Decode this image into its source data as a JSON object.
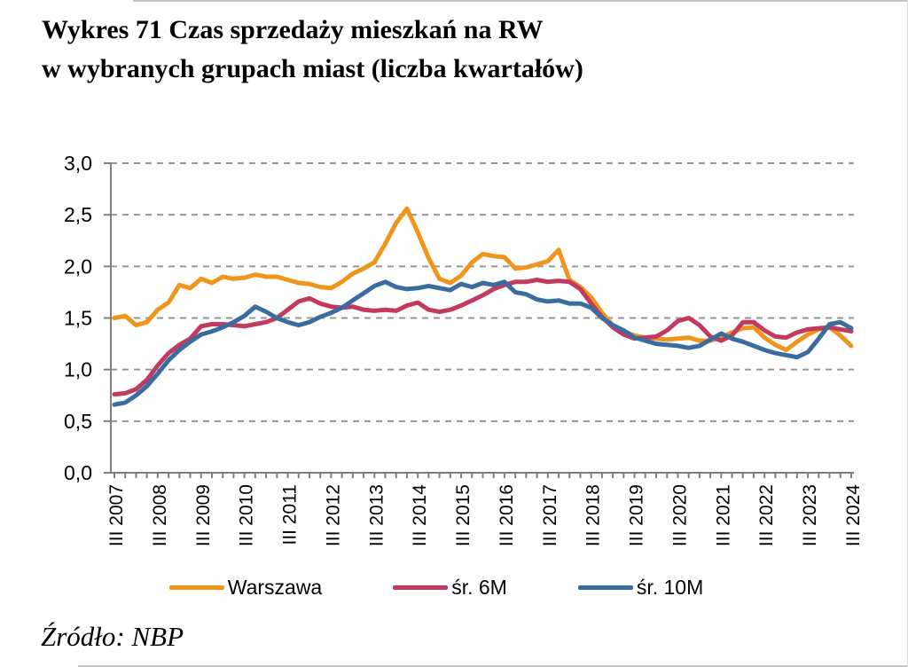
{
  "title": {
    "line1": "Wykres 71 Czas sprzedaży mieszkań na RW",
    "line2": "w wybranych grupach miast (liczba kwartałów)"
  },
  "source": "Źródło: NBP",
  "colors": {
    "warszawa": "#EF951C",
    "sr6m": "#C23A60",
    "sr10m": "#3A6CA0",
    "axis": "#7f7f7f",
    "grid": "#969696",
    "text": "#000000"
  },
  "chart_data": {
    "type": "line",
    "title": "Wykres 71 Czas sprzedaży mieszkań na RW w wybranych grupach miast (liczba kwartałów)",
    "xlabel": "",
    "ylabel": "",
    "ylim": [
      0.0,
      3.0
    ],
    "y_tick_step": 0.5,
    "y_tick_labels": [
      "0,0",
      "0,5",
      "1,0",
      "1,5",
      "2,0",
      "2,5",
      "3,0"
    ],
    "x_unit": "quarterly, III 2007 to III 2024",
    "x_tick_labels": [
      "III 2007",
      "III 2008",
      "III 2009",
      "III 2010",
      "III 2011",
      "III 2012",
      "III 2013",
      "III 2014",
      "III 2015",
      "III 2016",
      "III 2017",
      "III 2018",
      "III 2019",
      "III 2020",
      "III 2021",
      "III 2022",
      "III 2023",
      "III 2024"
    ],
    "quarters_per_label": 4,
    "grid": "horizontal dashed",
    "legend_position": "bottom",
    "series": [
      {
        "name": "Warszawa",
        "color": "#EF951C",
        "values": [
          1.5,
          1.52,
          1.43,
          1.46,
          1.58,
          1.65,
          1.82,
          1.79,
          1.88,
          1.84,
          1.9,
          1.88,
          1.89,
          1.92,
          1.9,
          1.9,
          1.87,
          1.84,
          1.83,
          1.8,
          1.79,
          1.85,
          1.93,
          1.98,
          2.04,
          2.22,
          2.42,
          2.56,
          2.33,
          2.08,
          1.88,
          1.84,
          1.91,
          2.04,
          2.12,
          2.1,
          2.09,
          1.98,
          1.99,
          2.02,
          2.05,
          2.16,
          1.87,
          1.8,
          1.7,
          1.55,
          1.43,
          1.37,
          1.33,
          1.31,
          1.3,
          1.29,
          1.3,
          1.31,
          1.28,
          1.28,
          1.31,
          1.36,
          1.4,
          1.41,
          1.31,
          1.24,
          1.19,
          1.27,
          1.34,
          1.39,
          1.41,
          1.33,
          1.23
        ]
      },
      {
        "name": "śr. 6M",
        "color": "#C23A60",
        "values": [
          0.76,
          0.77,
          0.81,
          0.9,
          1.04,
          1.16,
          1.24,
          1.3,
          1.42,
          1.44,
          1.44,
          1.43,
          1.42,
          1.44,
          1.46,
          1.5,
          1.58,
          1.66,
          1.69,
          1.64,
          1.61,
          1.6,
          1.61,
          1.58,
          1.57,
          1.58,
          1.57,
          1.62,
          1.65,
          1.58,
          1.56,
          1.58,
          1.62,
          1.67,
          1.72,
          1.78,
          1.82,
          1.85,
          1.85,
          1.87,
          1.85,
          1.86,
          1.85,
          1.78,
          1.64,
          1.51,
          1.41,
          1.34,
          1.3,
          1.31,
          1.32,
          1.38,
          1.47,
          1.5,
          1.43,
          1.32,
          1.28,
          1.33,
          1.46,
          1.46,
          1.38,
          1.32,
          1.31,
          1.36,
          1.39,
          1.4,
          1.41,
          1.39,
          1.37
        ]
      },
      {
        "name": "śr. 10M",
        "color": "#3A6CA0",
        "values": [
          0.66,
          0.68,
          0.75,
          0.84,
          0.96,
          1.09,
          1.19,
          1.27,
          1.34,
          1.37,
          1.41,
          1.46,
          1.52,
          1.61,
          1.56,
          1.5,
          1.46,
          1.43,
          1.46,
          1.51,
          1.55,
          1.6,
          1.67,
          1.74,
          1.81,
          1.85,
          1.8,
          1.78,
          1.79,
          1.81,
          1.79,
          1.77,
          1.83,
          1.8,
          1.84,
          1.82,
          1.85,
          1.75,
          1.73,
          1.68,
          1.66,
          1.67,
          1.64,
          1.64,
          1.6,
          1.5,
          1.43,
          1.38,
          1.31,
          1.28,
          1.25,
          1.24,
          1.23,
          1.21,
          1.23,
          1.29,
          1.35,
          1.3,
          1.27,
          1.23,
          1.19,
          1.16,
          1.14,
          1.12,
          1.17,
          1.3,
          1.44,
          1.46,
          1.4
        ]
      }
    ]
  }
}
